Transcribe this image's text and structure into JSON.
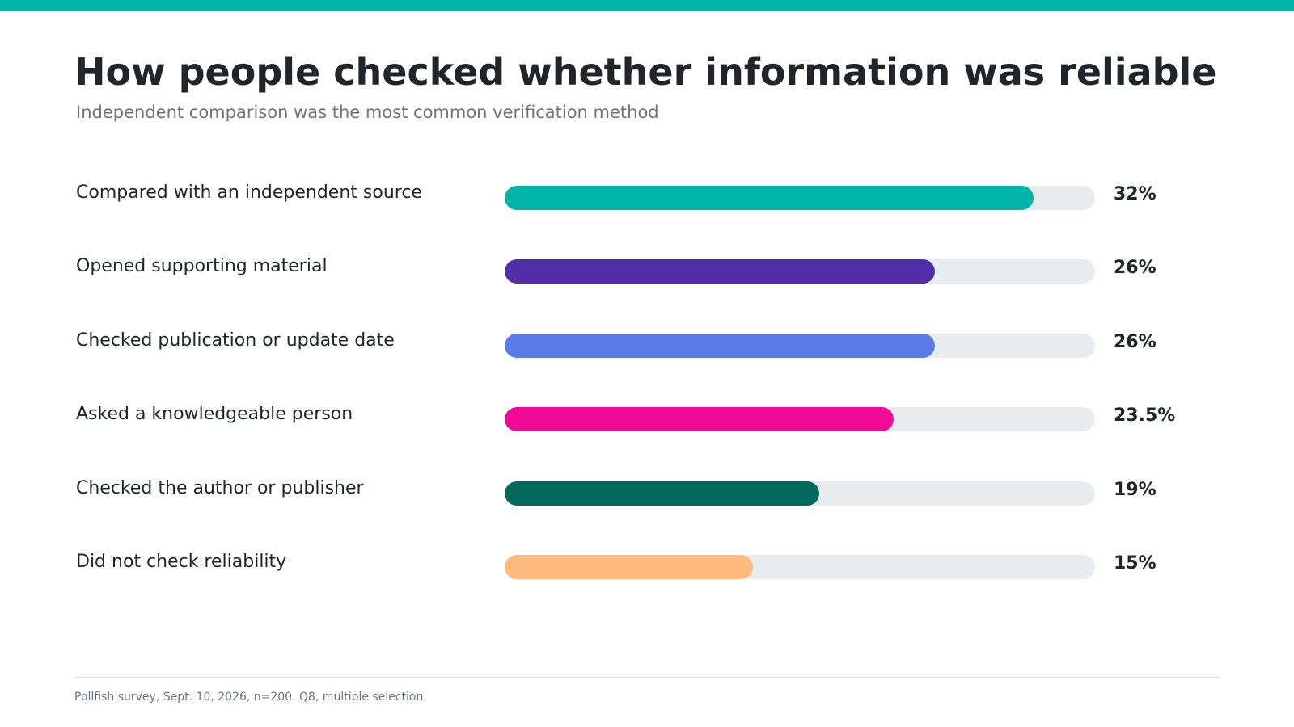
{
  "accent_color": "#00b5a8",
  "title": "How people checked whether information was reliable",
  "subtitle": "Independent comparison was the most common verification method",
  "source_note": "Pollfish survey, Sept. 10, 2026, n=200. Q8, multiple selection.",
  "track_color": "#e9ecef",
  "chart_data": {
    "type": "bar",
    "orientation": "horizontal",
    "title": "How people checked whether information was reliable",
    "subtitle": "Independent comparison was the most common verification method",
    "xlim": [
      0,
      35.7
    ],
    "grid": false,
    "unit": "%",
    "categories": [
      "Compared with an independent source",
      "Opened supporting material",
      "Checked publication or update date",
      "Asked a knowledgeable person",
      "Checked the author or publisher",
      "Did not check reliability"
    ],
    "values": [
      32,
      26,
      26,
      23.5,
      19,
      15
    ],
    "value_labels": [
      "32%",
      "26%",
      "26%",
      "23.5%",
      "19%",
      "15%"
    ],
    "colors": [
      "#00b5a8",
      "#512da8",
      "#5a7be6",
      "#f00a96",
      "#00695a",
      "#ffbb7d"
    ]
  }
}
